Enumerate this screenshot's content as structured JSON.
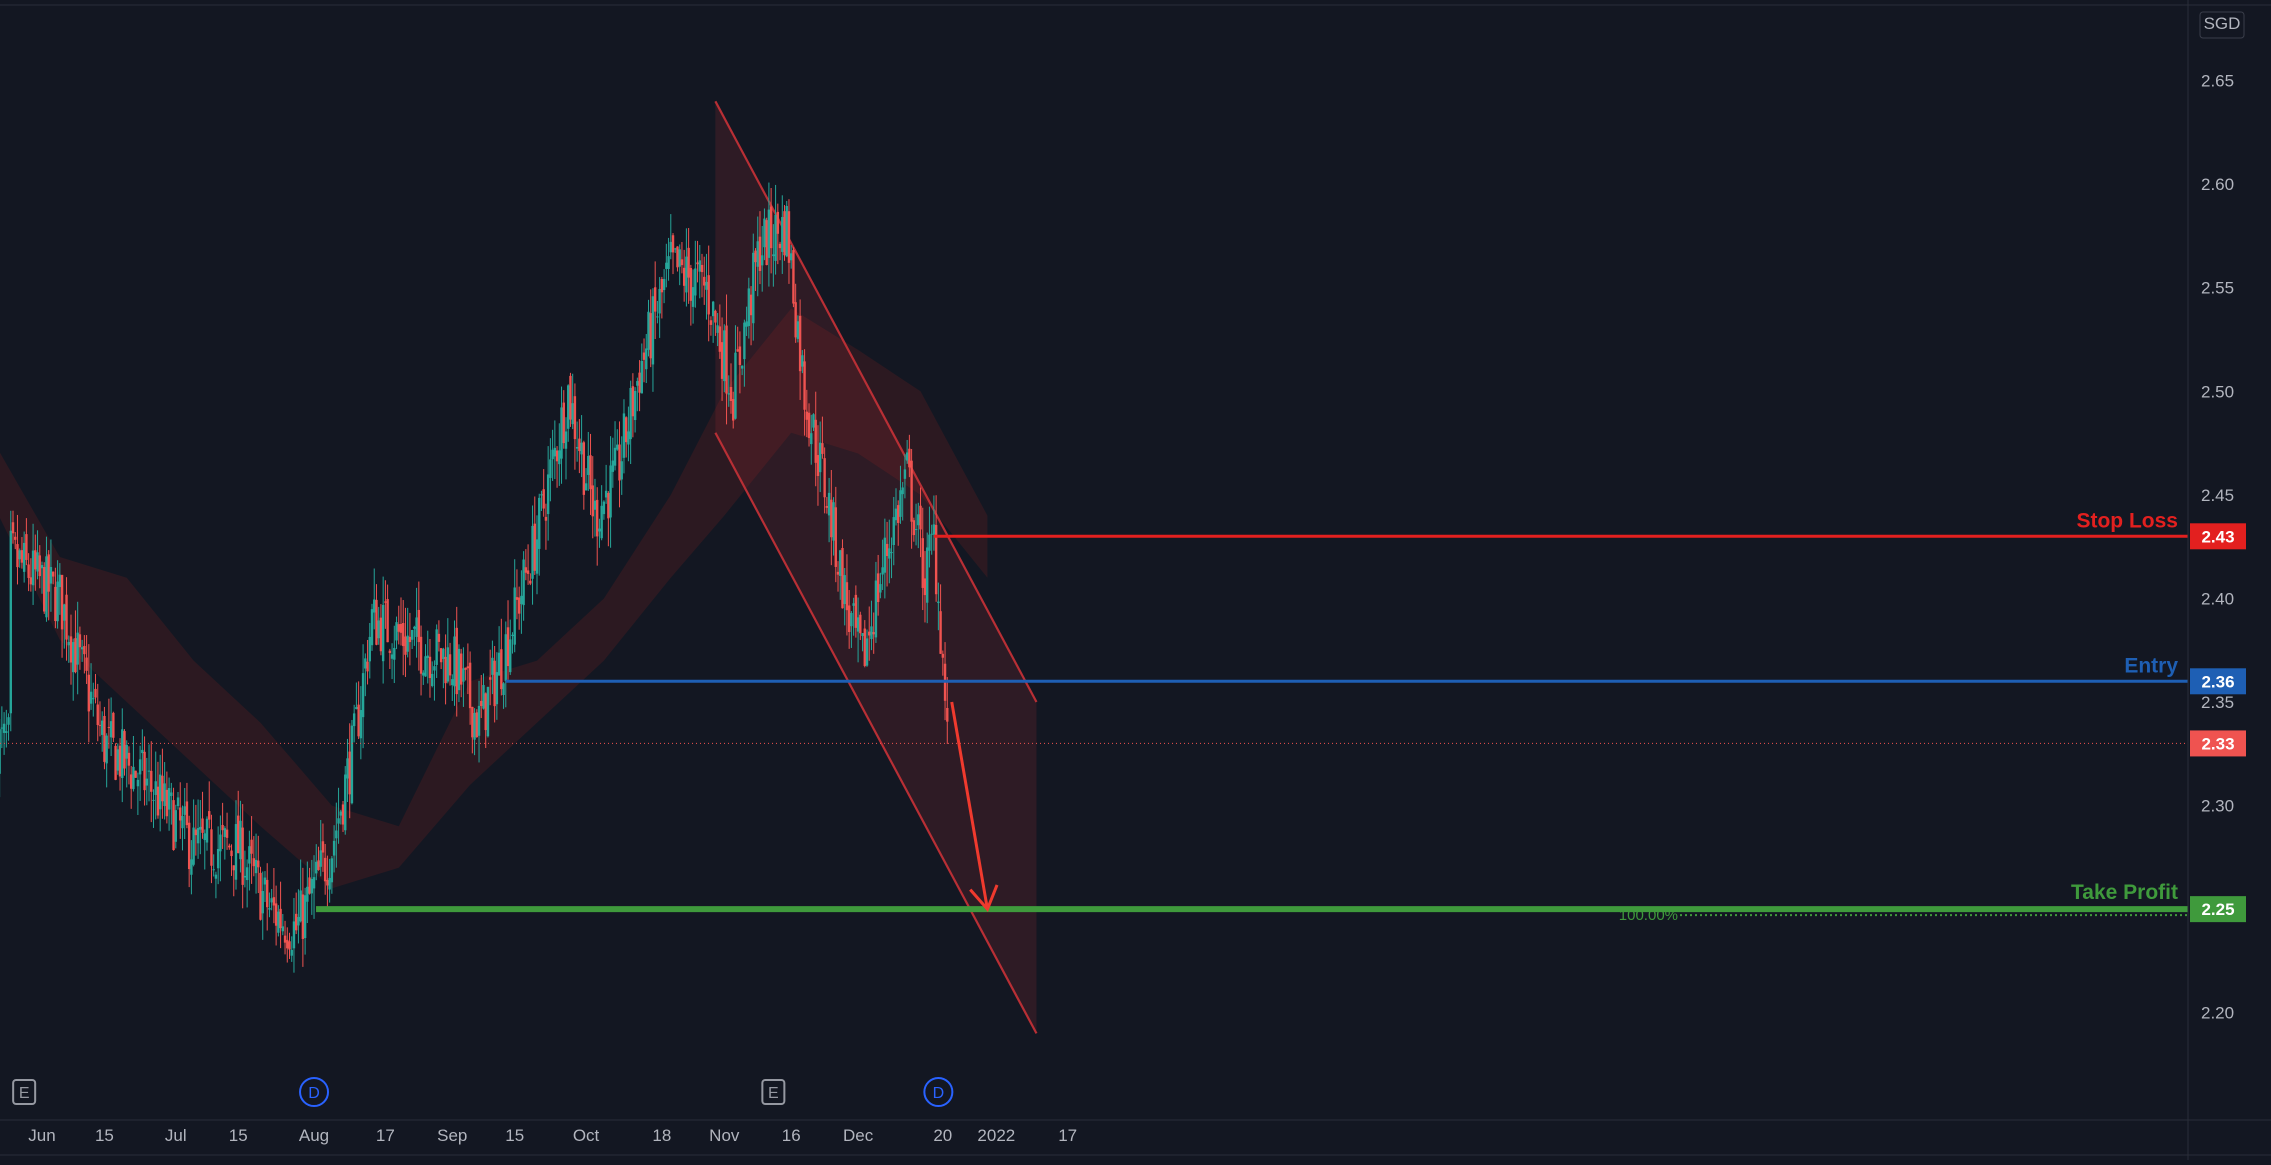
{
  "currency_label": "SGD",
  "colors": {
    "background": "#131722",
    "up": "#26a69a",
    "down": "#ef5350",
    "stop_loss": "#e3201f",
    "entry": "#1e5fb4",
    "take_profit": "#3f9a3c",
    "channel": "#b82f35",
    "axis_text": "#b2b5be",
    "event_marker_blue": "#2962ff",
    "event_marker_gray": "#9598a1"
  },
  "levels": {
    "stop_loss": {
      "label": "Stop Loss",
      "price": 2.43,
      "tag": "2.43"
    },
    "entry": {
      "label": "Entry",
      "price": 2.36,
      "tag": "2.36"
    },
    "take_profit": {
      "label": "Take Profit",
      "price": 2.25,
      "tag": "2.25"
    },
    "last_price": {
      "price": 2.33,
      "tag": "2.33"
    }
  },
  "fib_label": "100.00%",
  "event_markers": [
    {
      "letter": "E",
      "date": "2021-05-28",
      "style": "gray"
    },
    {
      "letter": "D",
      "date": "2021-08-01",
      "style": "blue"
    },
    {
      "letter": "E",
      "date": "2021-11-12",
      "style": "gray"
    },
    {
      "letter": "D",
      "date": "2021-12-19",
      "style": "blue"
    }
  ],
  "chart_data": {
    "type": "candlestick",
    "y_axis": {
      "ticks": [
        "2.20",
        "2.25",
        "2.30",
        "2.35",
        "2.40",
        "2.45",
        "2.50",
        "2.55",
        "2.60",
        "2.65"
      ],
      "position": "right"
    },
    "x_axis": {
      "ticks": [
        {
          "label": "Jun",
          "date": "2021-06-01"
        },
        {
          "label": "15",
          "date": "2021-06-15"
        },
        {
          "label": "Jul",
          "date": "2021-07-01"
        },
        {
          "label": "15",
          "date": "2021-07-15"
        },
        {
          "label": "Aug",
          "date": "2021-08-01"
        },
        {
          "label": "17",
          "date": "2021-08-17"
        },
        {
          "label": "Sep",
          "date": "2021-09-01"
        },
        {
          "label": "15",
          "date": "2021-09-15"
        },
        {
          "label": "Oct",
          "date": "2021-10-01"
        },
        {
          "label": "18",
          "date": "2021-10-18"
        },
        {
          "label": "Nov",
          "date": "2021-11-01"
        },
        {
          "label": "16",
          "date": "2021-11-16"
        },
        {
          "label": "Dec",
          "date": "2021-12-01"
        },
        {
          "label": "20",
          "date": "2021-12-20"
        },
        {
          "label": "2022",
          "date": "2022-01-01"
        },
        {
          "label": "17",
          "date": "2022-01-17"
        }
      ]
    },
    "closes": [
      {
        "date": "2021-05-25",
        "close": 2.42
      },
      {
        "date": "2021-06-05",
        "close": 2.4
      },
      {
        "date": "2021-06-15",
        "close": 2.33
      },
      {
        "date": "2021-06-25",
        "close": 2.31
      },
      {
        "date": "2021-07-05",
        "close": 2.28
      },
      {
        "date": "2021-07-15",
        "close": 2.28
      },
      {
        "date": "2021-07-22",
        "close": 2.25
      },
      {
        "date": "2021-07-28",
        "close": 2.24
      },
      {
        "date": "2021-08-05",
        "close": 2.28
      },
      {
        "date": "2021-08-10",
        "close": 2.33
      },
      {
        "date": "2021-08-14",
        "close": 2.39
      },
      {
        "date": "2021-08-22",
        "close": 2.38
      },
      {
        "date": "2021-09-01",
        "close": 2.37
      },
      {
        "date": "2021-09-07",
        "close": 2.34
      },
      {
        "date": "2021-09-12",
        "close": 2.37
      },
      {
        "date": "2021-09-20",
        "close": 2.43
      },
      {
        "date": "2021-09-27",
        "close": 2.5
      },
      {
        "date": "2021-10-03",
        "close": 2.44
      },
      {
        "date": "2021-10-08",
        "close": 2.46
      },
      {
        "date": "2021-10-13",
        "close": 2.51
      },
      {
        "date": "2021-10-20",
        "close": 2.56
      },
      {
        "date": "2021-10-28",
        "close": 2.55
      },
      {
        "date": "2021-11-03",
        "close": 2.5
      },
      {
        "date": "2021-11-09",
        "close": 2.57
      },
      {
        "date": "2021-11-15",
        "close": 2.58
      },
      {
        "date": "2021-11-19",
        "close": 2.5
      },
      {
        "date": "2021-11-24",
        "close": 2.45
      },
      {
        "date": "2021-11-29",
        "close": 2.39
      },
      {
        "date": "2021-12-02",
        "close": 2.37
      },
      {
        "date": "2021-12-07",
        "close": 2.42
      },
      {
        "date": "2021-12-12",
        "close": 2.46
      },
      {
        "date": "2021-12-16",
        "close": 2.41
      },
      {
        "date": "2021-12-18",
        "close": 2.43
      },
      {
        "date": "2021-12-20",
        "close": 2.37
      },
      {
        "date": "2021-12-21",
        "close": 2.33
      }
    ],
    "trend_channel": {
      "upper_line": [
        {
          "date": "2021-10-30",
          "price": 2.64
        },
        {
          "date": "2022-01-10",
          "price": 2.35
        }
      ],
      "lower_line": [
        {
          "date": "2021-10-30",
          "price": 2.48
        },
        {
          "date": "2022-01-10",
          "price": 2.19
        }
      ]
    },
    "projection_arrow": [
      {
        "date": "2021-12-22",
        "price": 2.35
      },
      {
        "date": "2021-12-30",
        "price": 2.25
      }
    ]
  }
}
